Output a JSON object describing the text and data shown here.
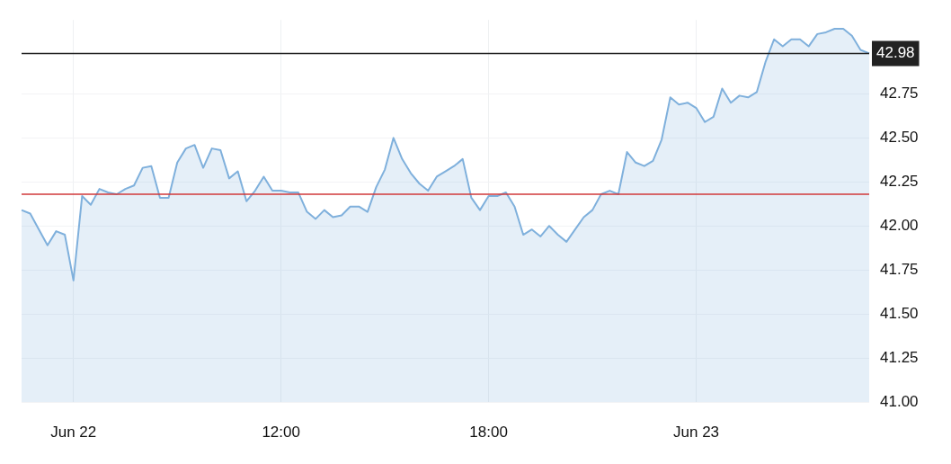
{
  "chart_data": {
    "type": "area",
    "categories": [
      null,
      null,
      null,
      null,
      null,
      null,
      "Jun 22",
      null,
      null,
      null,
      null,
      null,
      null,
      null,
      null,
      null,
      null,
      null,
      null,
      null,
      null,
      null,
      null,
      null,
      null,
      null,
      null,
      null,
      null,
      null,
      "12:00",
      null,
      null,
      null,
      null,
      null,
      null,
      null,
      null,
      null,
      null,
      null,
      null,
      null,
      null,
      null,
      null,
      null,
      null,
      null,
      null,
      null,
      null,
      null,
      "18:00",
      null,
      null,
      null,
      null,
      null,
      null,
      null,
      null,
      null,
      null,
      null,
      null,
      null,
      null,
      null,
      null,
      null,
      null,
      null,
      null,
      null,
      null,
      null,
      "Jun 23",
      null,
      null,
      null,
      null,
      null,
      null,
      null,
      null,
      null,
      null,
      null,
      null,
      null,
      null,
      null,
      null,
      null,
      null,
      null,
      null
    ],
    "series": [
      {
        "color": "#7fb0dc",
        "values": [
          42.09,
          42.07,
          41.98,
          41.89,
          41.97,
          41.95,
          41.69,
          42.17,
          42.12,
          42.21,
          42.19,
          42.18,
          42.21,
          42.23,
          42.33,
          42.34,
          42.16,
          42.16,
          42.36,
          42.44,
          42.46,
          42.33,
          42.44,
          42.43,
          42.27,
          42.31,
          42.14,
          42.2,
          42.28,
          42.2,
          42.2,
          42.19,
          42.19,
          42.08,
          42.04,
          42.09,
          42.05,
          42.06,
          42.11,
          42.11,
          42.08,
          42.22,
          42.32,
          42.5,
          42.38,
          42.3,
          42.24,
          42.2,
          42.28,
          42.31,
          42.34,
          42.38,
          42.16,
          42.09,
          42.17,
          42.17,
          42.19,
          42.11,
          41.95,
          41.98,
          41.94,
          42.0,
          41.95,
          41.91,
          41.98,
          42.05,
          42.09,
          42.18,
          42.2,
          42.18,
          42.42,
          42.36,
          42.34,
          42.37,
          42.49,
          42.73,
          42.69,
          42.7,
          42.67,
          42.59,
          42.62,
          42.78,
          42.7,
          42.74,
          42.73,
          42.76,
          42.93,
          43.06,
          43.02,
          43.06,
          43.06,
          43.02,
          43.09,
          43.1,
          43.12,
          43.12,
          43.08,
          43.0,
          42.98
        ]
      }
    ],
    "ylim": [
      41,
      43.17
    ],
    "yticks": [
      {
        "value": 41,
        "label": "41.00"
      },
      {
        "value": 41.25,
        "label": "41.25"
      },
      {
        "value": 41.5,
        "label": "41.50"
      },
      {
        "value": 41.75,
        "label": "41.75"
      },
      {
        "value": 42,
        "label": "42.00"
      },
      {
        "value": 42.25,
        "label": "42.25"
      },
      {
        "value": 42.5,
        "label": "42.50"
      },
      {
        "value": 42.75,
        "label": "42.75"
      }
    ],
    "ref_lines": [
      {
        "axis": "y",
        "value": 42.18,
        "color": "#d0393a"
      },
      {
        "axis": "y",
        "value": 42.98,
        "label": "42.98",
        "color": "#222222"
      }
    ],
    "grid": true,
    "legend": false,
    "marker": "none",
    "line_style": "solid"
  }
}
